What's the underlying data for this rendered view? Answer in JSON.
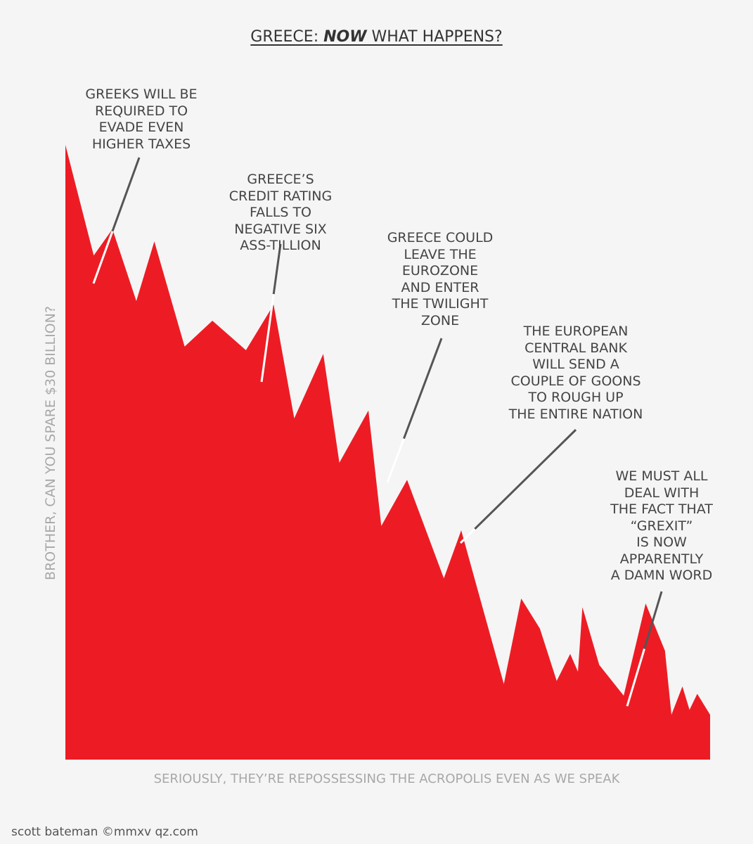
{
  "title": {
    "prefix": "GREECE:",
    "emphasis": "NOW",
    "suffix": "WHAT HAPPENS?"
  },
  "credit": "scott bateman ©mmxv qz.com",
  "colors": {
    "area": "#ed1c24",
    "pointer_line": "#555555",
    "pointer_inside": "#ffffff",
    "background": "#f5f5f5",
    "muted_text": "#a8a8a8"
  },
  "chart_data": {
    "type": "area",
    "title": "GREECE: NOW WHAT HAPPENS?",
    "xlabel": "SERIOUSLY, THEY’RE REPOSSESSING THE ACROPOLIS EVEN AS WE SPEAK",
    "ylabel": "BROTHER, CAN YOU SPARE $30 BILLION?",
    "xlim": [
      0,
      100
    ],
    "ylim": [
      0,
      100
    ],
    "grid": false,
    "x": [
      0,
      4.4,
      7.3,
      11,
      13.8,
      18.5,
      22.8,
      28,
      32.3,
      35.5,
      40,
      42.5,
      47,
      49,
      53,
      58.7,
      61.4,
      64,
      68,
      70.7,
      73.6,
      76.2,
      78.3,
      79.5,
      80.2,
      82.8,
      86.6,
      90,
      93,
      94,
      95.7,
      96.8,
      98,
      100
    ],
    "values": [
      100,
      82,
      86.3,
      74.6,
      84.3,
      67.2,
      71.4,
      66.6,
      74,
      55.5,
      66,
      48.3,
      56.8,
      38,
      45.5,
      29.5,
      37.3,
      27.4,
      12.3,
      26.2,
      21.3,
      12.8,
      17.2,
      14.3,
      24.8,
      15.4,
      10.4,
      25.4,
      17.7,
      7.3,
      11.9,
      8.1,
      10.7,
      7.3
    ],
    "annotations": [
      {
        "text": "GREEKS WILL BE\nREQUIRED TO\nEVADE EVEN\nHIGHER TAXES",
        "x": 7.3
      },
      {
        "text": "GREECE’S\nCREDIT RATING\nFALLS TO\nNEGATIVE SIX\nASS-TILLION",
        "x": 32.3
      },
      {
        "text": "GREECE COULD\nLEAVE THE\nEUROZONE\nAND ENTER\nTHE TWILIGHT\nZONE",
        "x": 52.5
      },
      {
        "text": "THE EUROPEAN\nCENTRAL BANK\nWILL SEND A\nCOUPLE OF GOONS\nTO ROUGH UP\nTHE ENTIRE NATION",
        "x": 63.5
      },
      {
        "text": "WE MUST ALL\nDEAL WITH\nTHE FACT THAT\n“GREXIT”\nIS NOW\nAPPARENTLY\nA DAMN WORD",
        "x": 89.8
      }
    ]
  }
}
